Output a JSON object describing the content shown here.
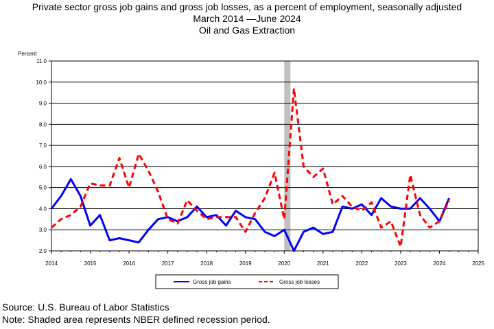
{
  "header": {
    "title_line1": "Private sector gross job gains and gross job losses, as a percent of employment, seasonally adjusted",
    "title_line2": "March 2014 —June 2024",
    "subtitle": "Oil and Gas Extraction"
  },
  "footer": {
    "source": "Source: U.S. Bureau of Labor Statistics",
    "note": "Note: Shaded area represents NBER defined recession period."
  },
  "colors": {
    "gains": "#0000ff",
    "losses": "#ff0000",
    "recession": "#c0c0c0"
  },
  "chart_data": {
    "type": "line",
    "ylabel": "Percent",
    "xlabel": "",
    "ylim": [
      2.0,
      11.0
    ],
    "xlim": [
      2014,
      2025
    ],
    "yticks": [
      "2.0",
      "3.0",
      "4.0",
      "5.0",
      "6.0",
      "7.0",
      "8.0",
      "9.0",
      "10.0",
      "11.0"
    ],
    "xticks": [
      "2014",
      "2015",
      "2016",
      "2017",
      "2018",
      "2019",
      "2020",
      "2021",
      "2022",
      "2023",
      "2024",
      "2025"
    ],
    "grid": "horizontal",
    "legend_position": "bottom",
    "recession_shading": [
      2020.0,
      2020.16
    ],
    "x": [
      2014.0,
      2014.25,
      2014.5,
      2014.75,
      2015.0,
      2015.25,
      2015.5,
      2015.75,
      2016.0,
      2016.25,
      2016.5,
      2016.75,
      2017.0,
      2017.25,
      2017.5,
      2017.75,
      2018.0,
      2018.25,
      2018.5,
      2018.75,
      2019.0,
      2019.25,
      2019.5,
      2019.75,
      2020.0,
      2020.25,
      2020.5,
      2020.75,
      2021.0,
      2021.25,
      2021.5,
      2021.75,
      2022.0,
      2022.25,
      2022.5,
      2022.75,
      2023.0,
      2023.25,
      2023.5,
      2023.75,
      2024.0,
      2024.25
    ],
    "series": [
      {
        "name": "Gross job gains",
        "style": "solid",
        "values": [
          4.0,
          4.6,
          5.4,
          4.6,
          3.2,
          3.7,
          2.5,
          2.6,
          2.5,
          2.4,
          3.0,
          3.5,
          3.6,
          3.4,
          3.6,
          4.1,
          3.6,
          3.7,
          3.2,
          3.9,
          3.6,
          3.5,
          2.9,
          2.7,
          3.0,
          2.0,
          2.9,
          3.1,
          2.8,
          2.9,
          4.1,
          4.0,
          4.2,
          3.7,
          4.5,
          4.1,
          4.0,
          4.0,
          4.5,
          4.0,
          3.4,
          4.5
        ]
      },
      {
        "name": "Gross job losses",
        "style": "dashed",
        "values": [
          3.1,
          3.5,
          3.7,
          4.1,
          5.2,
          5.1,
          5.1,
          6.4,
          5.0,
          6.6,
          5.8,
          4.8,
          3.5,
          3.3,
          4.4,
          3.9,
          3.5,
          3.6,
          3.6,
          3.6,
          2.9,
          3.8,
          4.5,
          5.7,
          3.5,
          9.7,
          6.0,
          5.5,
          5.9,
          4.2,
          4.6,
          4.1,
          3.9,
          4.3,
          3.1,
          3.4,
          2.2,
          5.6,
          3.7,
          3.1,
          3.4,
          4.4
        ]
      }
    ]
  }
}
